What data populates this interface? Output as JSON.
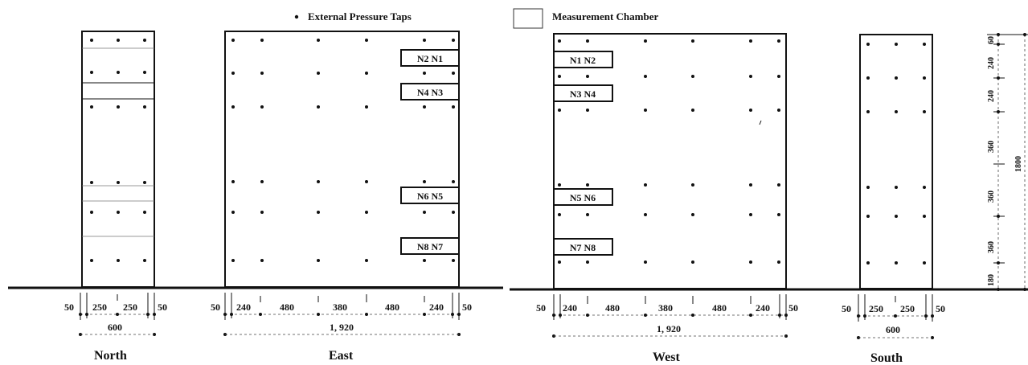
{
  "legend": {
    "taps_label": "External Pressure Taps",
    "chamber_label": "Measurement Chamber"
  },
  "facades": {
    "north": {
      "label": "North",
      "dims": [
        "50",
        "250",
        "250",
        "50"
      ],
      "total": "600"
    },
    "east": {
      "label": "East",
      "dims": [
        "50",
        "240",
        "480",
        "380",
        "480",
        "240",
        "50"
      ],
      "total": "1, 920",
      "chambers": [
        "N2  N1",
        "N4  N3",
        "N6  N5",
        "N8  N7"
      ]
    },
    "west": {
      "label": "West",
      "dims": [
        "50",
        "240",
        "480",
        "380",
        "480",
        "240",
        "50"
      ],
      "total": "1, 920",
      "chambers": [
        "N1  N2",
        "N3  N4",
        "N5  N6",
        "N7  N8"
      ]
    },
    "south": {
      "label": "South",
      "dims": [
        "50",
        "250",
        "250",
        "50"
      ],
      "total": "600"
    }
  },
  "vertical_dims": {
    "segments": [
      "60",
      "240",
      "240",
      "360",
      "360",
      "360",
      "180"
    ],
    "total": "1800"
  },
  "colors": {
    "ink": "#111111",
    "background": "#ffffff"
  }
}
